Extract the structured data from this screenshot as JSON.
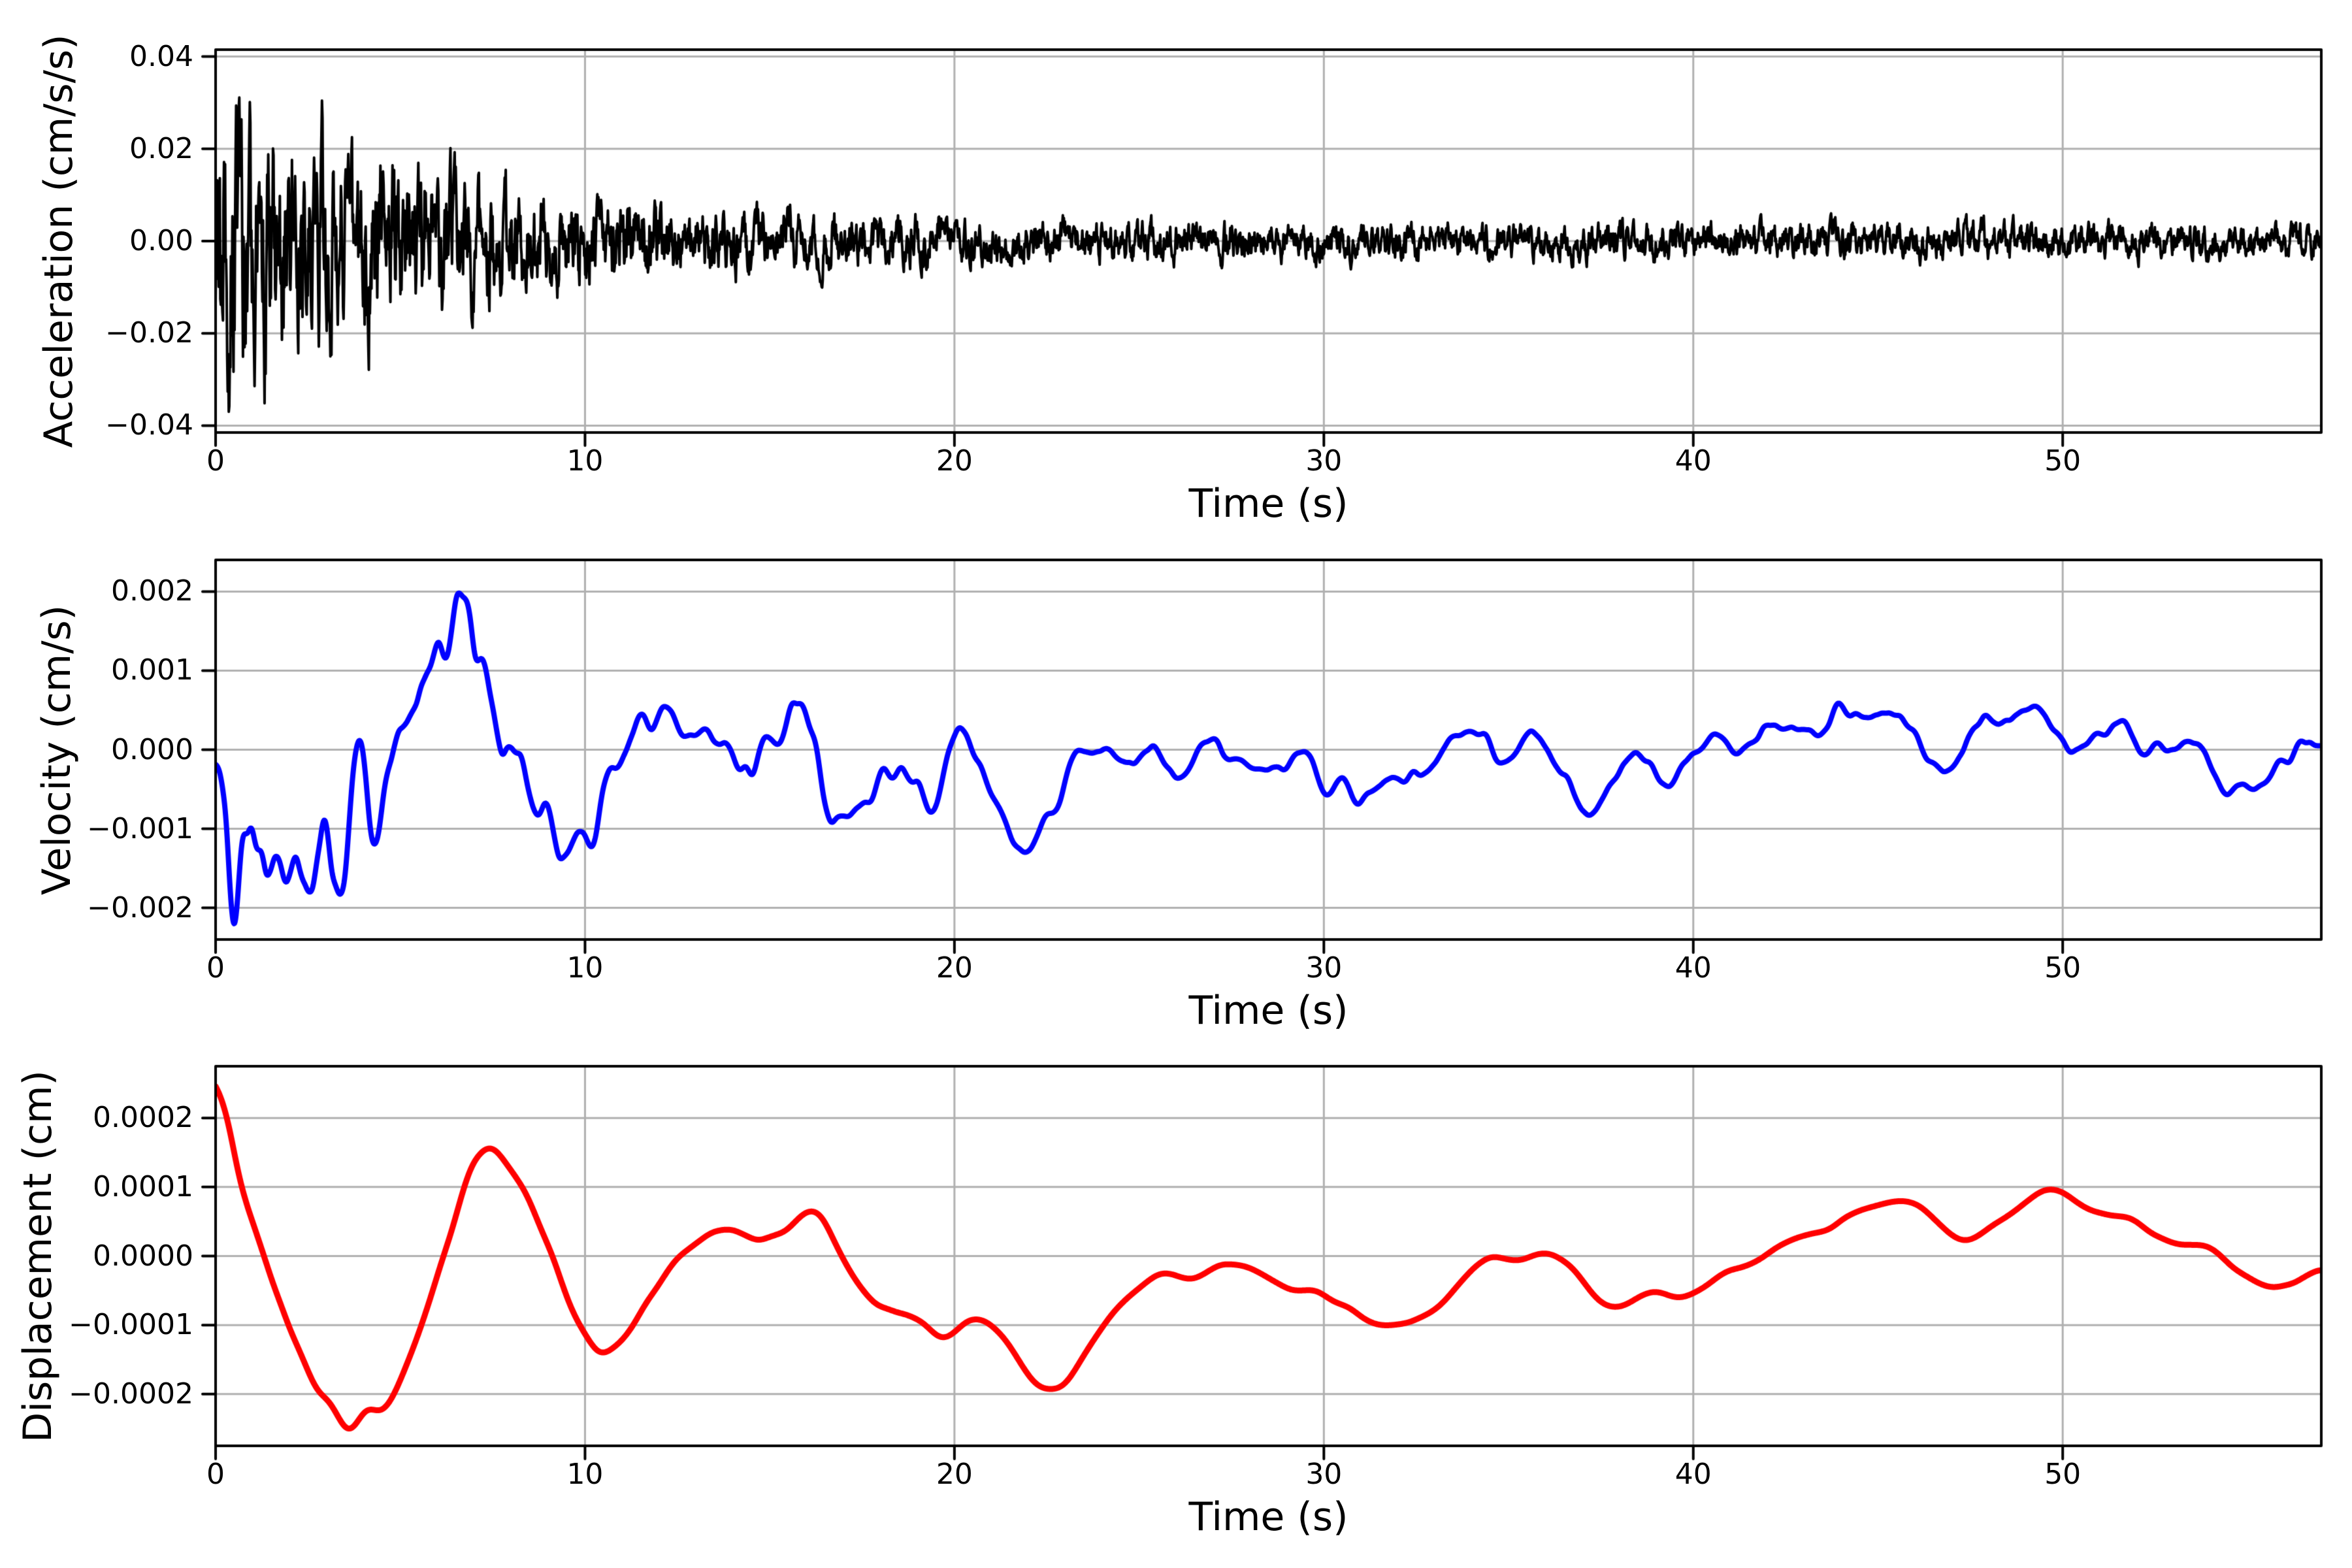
{
  "figure": {
    "background": "#ffffff",
    "axis_color": "#000000",
    "grid_color": "#b0b0b0",
    "tick_color": "#000000",
    "text_color": "#000000"
  },
  "chart_data": [
    {
      "type": "line",
      "ylabel": "Acceleration (cm/s/s)",
      "xlabel": "Time (s)",
      "series_color": "#000000",
      "line_width": 4,
      "grid": true,
      "legend": null,
      "xlim": [
        0,
        57
      ],
      "ylim": [
        -0.0415,
        0.0415
      ],
      "xticks": {
        "values": [
          0,
          10,
          20,
          30,
          40,
          50
        ],
        "labels": [
          "0",
          "10",
          "20",
          "30",
          "40",
          "50"
        ]
      },
      "yticks": {
        "values": [
          0.04,
          0.02,
          0,
          -0.02,
          -0.04
        ],
        "labels": [
          "0.04",
          "0.02",
          "0.00",
          "−0.02",
          "−0.04"
        ]
      },
      "peak_value": 0.037,
      "peak_time_s": 0.8,
      "end_amplitude": 0.004,
      "signal": {
        "generator": "decaying-noise",
        "seed": 90210,
        "points": 4000,
        "duration_s": 57,
        "noise_smooth": 0.7,
        "envelope_floor": 0.11,
        "envelope_amp": 0.89,
        "envelope_tau_s": 6.0,
        "normalize_peak": 0.037
      }
    },
    {
      "type": "line",
      "ylabel": "Velocity (cm/s)",
      "xlabel": "Time (s)",
      "series_color": "#0000ff",
      "line_width": 8,
      "grid": true,
      "legend": null,
      "xlim": [
        0,
        57
      ],
      "ylim": [
        -0.0024,
        0.0024
      ],
      "xticks": {
        "values": [
          0,
          10,
          20,
          30,
          40,
          50
        ],
        "labels": [
          "0",
          "10",
          "20",
          "30",
          "40",
          "50"
        ]
      },
      "yticks": {
        "values": [
          0.002,
          0.001,
          0,
          -0.001,
          -0.002
        ],
        "labels": [
          "0.002",
          "0.001",
          "0.000",
          "−0.001",
          "−0.002"
        ]
      },
      "peak_value": 0.0022,
      "peak_time_s": 0.9,
      "end_amplitude": 0.0002,
      "signal": {
        "generator": "leaky-integral",
        "source": 0,
        "leak": 0.01,
        "post_smooth_alpha": 0.8,
        "post_smooth_passes": 2,
        "normalize_peak": 0.0022
      }
    },
    {
      "type": "line",
      "ylabel": "Displacement (cm)",
      "xlabel": "Time (s)",
      "series_color": "#ff0000",
      "line_width": 9,
      "grid": true,
      "legend": null,
      "xlim": [
        0,
        57
      ],
      "ylim": [
        -0.000275,
        0.000275
      ],
      "xticks": {
        "values": [
          0,
          10,
          20,
          30,
          40,
          50
        ],
        "labels": [
          "0",
          "10",
          "20",
          "30",
          "40",
          "50"
        ]
      },
      "yticks": {
        "values": [
          0.0002,
          0.0001,
          0,
          -0.0001,
          -0.0002
        ],
        "labels": [
          "0.0002",
          "0.0001",
          "0.0000",
          "−0.0001",
          "−0.0002"
        ]
      },
      "peak_value": 0.00025,
      "peak_time_s": 0.9,
      "end_amplitude": 5e-05,
      "signal": {
        "generator": "leaky-integral",
        "source": 1,
        "leak": 0.008,
        "post_smooth_alpha": 0.85,
        "post_smooth_passes": 2,
        "burst_weight": 0.55,
        "background_amp": 0.5,
        "background_smooth": 0.985,
        "normalize_peak": 0.00025
      }
    }
  ]
}
